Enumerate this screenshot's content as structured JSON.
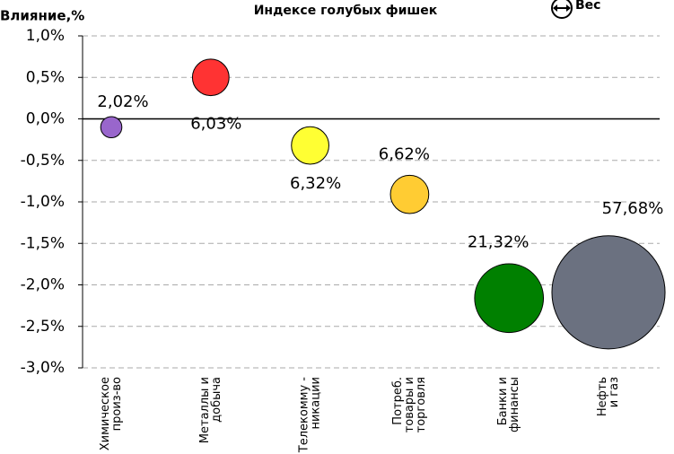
{
  "chart_data": {
    "type": "bubble",
    "title": "Индексе голубых фишек",
    "y_label": "Влияние,%",
    "size_legend": "Вес",
    "categories": [
      [
        "Химическое",
        "произ-во"
      ],
      [
        "Металлы и",
        "добыча"
      ],
      [
        "Телекомму -",
        "никации"
      ],
      [
        "Потреб.",
        "товары и",
        "торговля"
      ],
      [
        "Банки и",
        "финансы"
      ],
      [
        "Нефть",
        "и газ"
      ]
    ],
    "values": [
      -0.1,
      0.5,
      -0.32,
      -0.91,
      -2.16,
      -2.09
    ],
    "sizes": [
      2.02,
      6.03,
      6.32,
      6.62,
      21.32,
      57.68
    ],
    "size_labels": [
      "2,02%",
      "6,03%",
      "6,32%",
      "6,62%",
      "21,32%",
      "57,68%"
    ],
    "colors": [
      "#9966cc",
      "#ff3333",
      "#ffff33",
      "#ffcc33",
      "#008000",
      "#6b7180"
    ],
    "ylim": [
      -3,
      1
    ],
    "yticks": [
      {
        "value": 1,
        "label": "1,0%"
      },
      {
        "value": 0.5,
        "label": "0,5%"
      },
      {
        "value": 0,
        "label": "0,0%"
      },
      {
        "value": -0.5,
        "label": "-0,5%"
      },
      {
        "value": -1,
        "label": "-1,0%"
      },
      {
        "value": -1.5,
        "label": "-1,5%"
      },
      {
        "value": -2,
        "label": "-2,0%"
      },
      {
        "value": -2.5,
        "label": "-2,5%"
      },
      {
        "value": -3,
        "label": "-3,0%"
      }
    ],
    "grid": true
  }
}
